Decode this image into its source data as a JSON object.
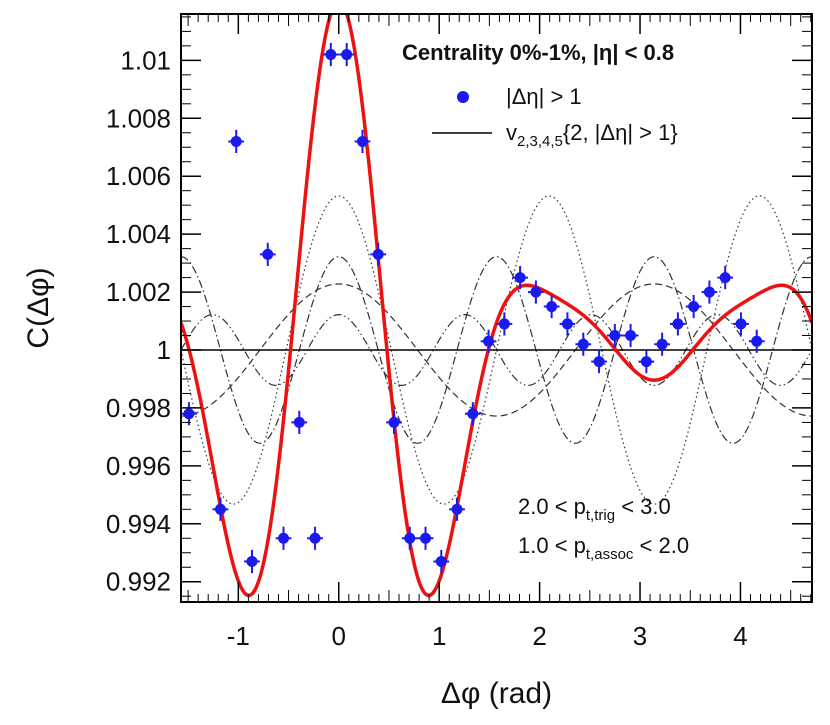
{
  "chart_data": {
    "type": "scatter",
    "title": "Centrality 0%-1%, |η| < 0.8",
    "xlabel": "Δφ (rad)",
    "ylabel": "C(Δφ)",
    "xlim": [
      -1.5708,
      4.7124
    ],
    "ylim": [
      0.9913,
      1.0116
    ],
    "x_ticks": [
      -1,
      0,
      1,
      2,
      3,
      4
    ],
    "y_ticks": [
      0.992,
      0.994,
      0.996,
      0.998,
      1,
      1.002,
      1.004,
      1.006,
      1.008,
      1.01
    ],
    "y_tick_labels": [
      "0.992",
      "0.994",
      "0.996",
      "0.998",
      "1",
      "1.002",
      "1.004",
      "1.006",
      "1.008",
      "1.01"
    ],
    "x_tick_labels": [
      "-1",
      "0",
      "1",
      "2",
      "3",
      "4"
    ],
    "baseline": 1.0,
    "legend": {
      "header": "Centrality 0%-1%, |η| < 0.8",
      "marker_label": "|Δη| > 1",
      "line_label_main": "v",
      "line_label_sub": "2,3,4,5",
      "line_label_rest": "{2, |Δη| > 1}"
    },
    "annotations": {
      "line1_a": "2.0 < p",
      "line1_sub": "t,trig",
      "line1_b": " < 3.0",
      "line2_a": "1.0 < p",
      "line2_sub": "t,assoc",
      "line2_b": " < 2.0"
    },
    "fit": {
      "name": "v2,3,4,5 fit",
      "baseline": 1.0,
      "cos_amplitudes": {
        "n1": 0.0,
        "n2": 0.00228,
        "n3": 0.00532,
        "n4": 0.00322,
        "n5": 0.00122
      },
      "color": "#ee1111"
    },
    "components": [
      {
        "n": 2,
        "amplitude": 0.00228,
        "style": "dash"
      },
      {
        "n": 3,
        "amplitude": 0.00532,
        "style": "dot"
      },
      {
        "n": 4,
        "amplitude": 0.00322,
        "style": "dashdot"
      },
      {
        "n": 5,
        "amplitude": 0.00122,
        "style": "dashdotdot"
      }
    ],
    "series": [
      {
        "name": "|Δη| > 1",
        "color": "#1a1aee",
        "x_error": 0.0785,
        "points": [
          {
            "x": -1.492,
            "y": 0.9978,
            "yerr": 0.0004
          },
          {
            "x": -1.178,
            "y": 0.9945,
            "yerr": 0.0004
          },
          {
            "x": -0.864,
            "y": 0.9927,
            "yerr": 0.0004
          },
          {
            "x": -0.55,
            "y": 0.9935,
            "yerr": 0.0004
          },
          {
            "x": -0.236,
            "y": 0.9935,
            "yerr": 0.0004
          },
          {
            "x": -0.393,
            "y": 0.9975,
            "yerr": 0.0004
          },
          {
            "x": -0.707,
            "y": 1.0033,
            "yerr": 0.0004
          },
          {
            "x": -1.021,
            "y": 1.0072,
            "yerr": 0.0004
          },
          {
            "x": 0.079,
            "y": 1.0102,
            "yerr": 0.0004
          },
          {
            "x": -0.079,
            "y": 1.0102,
            "yerr": 0.0004
          },
          {
            "x": 0.236,
            "y": 1.0072,
            "yerr": 0.0004
          },
          {
            "x": 0.393,
            "y": 1.0033,
            "yerr": 0.0004
          },
          {
            "x": 0.55,
            "y": 0.9975,
            "yerr": 0.0004
          },
          {
            "x": 0.707,
            "y": 0.9935,
            "yerr": 0.0004
          },
          {
            "x": 0.864,
            "y": 0.9935,
            "yerr": 0.0004
          },
          {
            "x": 1.021,
            "y": 0.9927,
            "yerr": 0.0004
          },
          {
            "x": 1.178,
            "y": 0.9945,
            "yerr": 0.0004
          },
          {
            "x": 1.335,
            "y": 0.9978,
            "yerr": 0.0004
          },
          {
            "x": 1.492,
            "y": 1.0003,
            "yerr": 0.0004
          },
          {
            "x": 1.649,
            "y": 1.0009,
            "yerr": 0.0004
          },
          {
            "x": 1.806,
            "y": 1.0025,
            "yerr": 0.0004
          },
          {
            "x": 1.963,
            "y": 1.002,
            "yerr": 0.0004
          },
          {
            "x": 2.12,
            "y": 1.0015,
            "yerr": 0.0004
          },
          {
            "x": 2.277,
            "y": 1.0009,
            "yerr": 0.0004
          },
          {
            "x": 2.435,
            "y": 1.0002,
            "yerr": 0.0004
          },
          {
            "x": 2.592,
            "y": 0.9996,
            "yerr": 0.0004
          },
          {
            "x": 2.749,
            "y": 1.0005,
            "yerr": 0.0004
          },
          {
            "x": 2.906,
            "y": 1.0005,
            "yerr": 0.0004
          },
          {
            "x": 3.063,
            "y": 0.9996,
            "yerr": 0.0004
          },
          {
            "x": 3.22,
            "y": 1.0002,
            "yerr": 0.0004
          },
          {
            "x": 3.377,
            "y": 1.0009,
            "yerr": 0.0004
          },
          {
            "x": 3.534,
            "y": 1.0015,
            "yerr": 0.0004
          },
          {
            "x": 3.691,
            "y": 1.002,
            "yerr": 0.0004
          },
          {
            "x": 3.848,
            "y": 1.0025,
            "yerr": 0.0004
          },
          {
            "x": 4.005,
            "y": 1.0009,
            "yerr": 0.0004
          },
          {
            "x": 4.162,
            "y": 1.0003,
            "yerr": 0.0004
          }
        ]
      }
    ]
  }
}
